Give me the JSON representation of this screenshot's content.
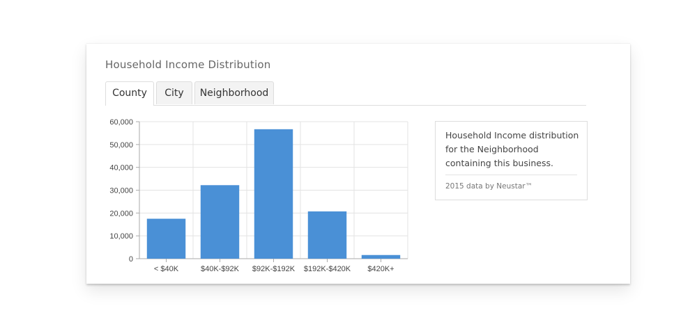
{
  "card": {
    "title": "Household Income Distribution",
    "tabs": [
      {
        "label": "County",
        "active": true
      },
      {
        "label": "City",
        "active": false
      },
      {
        "label": "Neighborhood",
        "active": false
      }
    ]
  },
  "info": {
    "description": "Household Income distribution for the Neighborhood containing this business.",
    "source": "2015 data by Neustar™"
  },
  "colors": {
    "bar": "#4a90d6",
    "grid": "#e3e3e3",
    "axis": "#aaaaaa"
  },
  "chart_data": {
    "type": "bar",
    "categories": [
      "< $40K",
      "$40K-$92K",
      "$92K-$192K",
      "$192K-$420K",
      "$420K+"
    ],
    "values": [
      17500,
      32200,
      56700,
      20700,
      1600
    ],
    "title": "",
    "xlabel": "",
    "ylabel": "",
    "ylim": [
      0,
      60000
    ],
    "yticks": [
      0,
      10000,
      20000,
      30000,
      40000,
      50000,
      60000
    ],
    "ytick_labels": [
      "0",
      "10,000",
      "20,000",
      "30,000",
      "40,000",
      "50,000",
      "60,000"
    ],
    "grid": true,
    "legend": "none"
  }
}
